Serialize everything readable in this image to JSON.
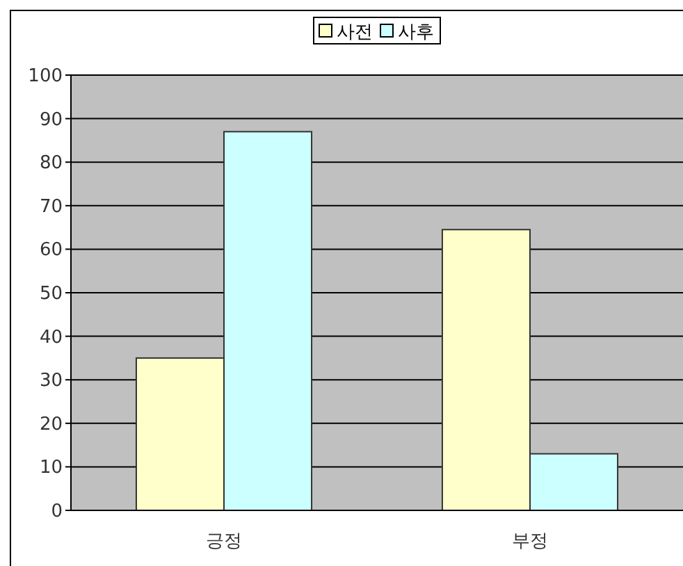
{
  "chart_data": {
    "type": "bar",
    "categories": [
      "긍정",
      "부정"
    ],
    "series": [
      {
        "name": "사전",
        "color": "#ffffcc",
        "values": [
          35,
          64.5
        ]
      },
      {
        "name": "사후",
        "color": "#ccffff",
        "values": [
          87,
          13
        ]
      }
    ],
    "ylim": [
      0,
      100
    ],
    "yticks": [
      0,
      10,
      20,
      30,
      40,
      50,
      60,
      70,
      80,
      90,
      100
    ],
    "grid": "y",
    "legend": "top"
  }
}
